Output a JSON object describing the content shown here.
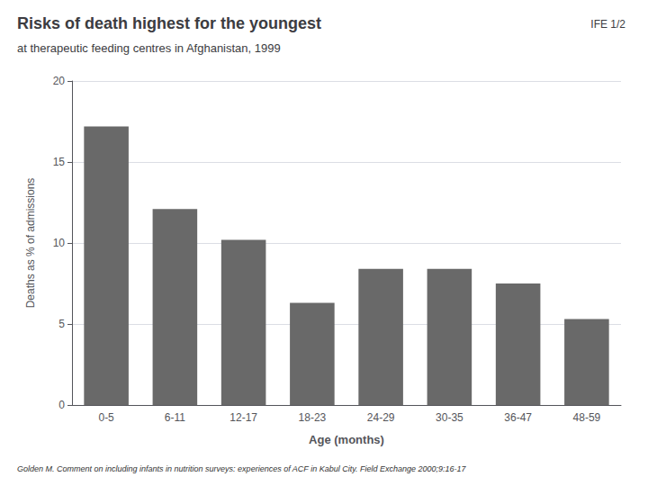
{
  "chart_data": {
    "type": "bar",
    "title": "Risks of death highest for the youngest",
    "subtitle": "at therapeutic feeding centres in Afghanistan, 1999",
    "annotations": [
      "IFE 1/2"
    ],
    "footnote": "Golden M. Comment on including infants in nutrition surveys: experiences of ACF in Kabul City. Field Exchange 2000;9:16-17",
    "xlabel": "Age (months)",
    "ylabel": "Deaths as % of admissions",
    "categories": [
      "0-5",
      "6-11",
      "12-17",
      "18-23",
      "24-29",
      "30-35",
      "36-47",
      "48-59"
    ],
    "values": [
      17.2,
      12.1,
      10.2,
      6.3,
      8.4,
      8.4,
      7.5,
      5.3
    ],
    "color": "#696969",
    "ylim": [
      0,
      20
    ],
    "yticks": [
      0,
      5,
      10,
      15,
      20
    ],
    "grid": true
  }
}
